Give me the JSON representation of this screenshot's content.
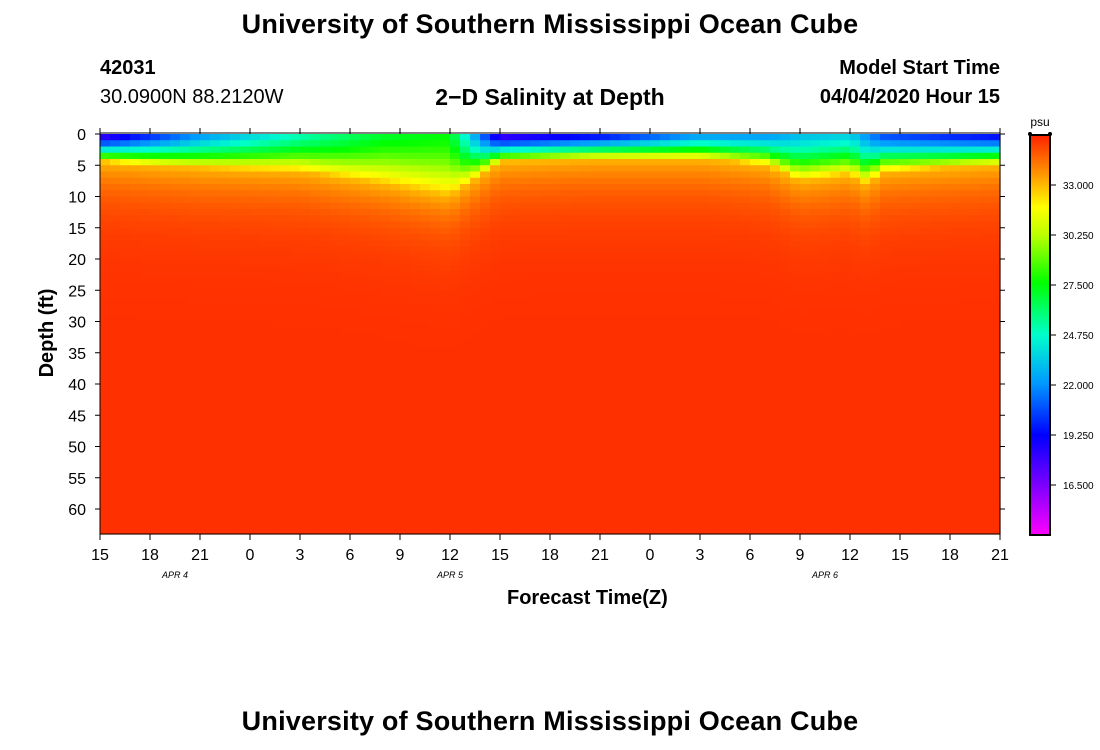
{
  "header": {
    "title": "University of Southern Mississippi Ocean Cube",
    "station_id": "42031",
    "station_location": "30.0900N 88.2120W",
    "chart_title": "2−D Salinity at Depth",
    "model_start_label": "Model Start Time",
    "model_start_value": "04/04/2020 Hour 15"
  },
  "footer": {
    "title": "University of Southern Mississippi Ocean Cube"
  },
  "chart_data": {
    "type": "heatmap",
    "title": "2−D Salinity at Depth",
    "xlabel": "Forecast Time(Z)",
    "ylabel": "Depth (ft)",
    "x_tick_labels": [
      "15",
      "18",
      "21",
      "0",
      "3",
      "6",
      "9",
      "12",
      "15",
      "18",
      "21",
      "0",
      "3",
      "6",
      "9",
      "12",
      "15",
      "18",
      "21"
    ],
    "x_range_hours": [
      0,
      54
    ],
    "date_labels": [
      {
        "label": "APR 4",
        "hour": 4.5
      },
      {
        "label": "APR 5",
        "hour": 21
      },
      {
        "label": "APR 6",
        "hour": 43.5
      }
    ],
    "y_ticks": [
      0,
      5,
      10,
      15,
      20,
      25,
      30,
      35,
      40,
      45,
      50,
      55,
      60
    ],
    "ylim": [
      0,
      64
    ],
    "colorbar": {
      "unit": "psu",
      "min": 13.75,
      "max": 35.75,
      "ticks": [
        "33.000",
        "30.250",
        "27.500",
        "24.750",
        "22.000",
        "19.250",
        "16.500"
      ],
      "tick_values": [
        33.0,
        30.25,
        27.5,
        24.75,
        22.0,
        19.25,
        16.5
      ]
    },
    "salinity_profile_keyframes": [
      {
        "hour": 0,
        "surface_psu": 17.5,
        "mixed_layer_ft": 4.5
      },
      {
        "hour": 6,
        "surface_psu": 22.0,
        "mixed_layer_ft": 5.5
      },
      {
        "hour": 12,
        "surface_psu": 25.0,
        "mixed_layer_ft": 6.0
      },
      {
        "hour": 17,
        "surface_psu": 27.0,
        "mixed_layer_ft": 8.0
      },
      {
        "hour": 21,
        "surface_psu": 27.5,
        "mixed_layer_ft": 10.0
      },
      {
        "hour": 24,
        "surface_psu": 17.5,
        "mixed_layer_ft": 4.5
      },
      {
        "hour": 30,
        "surface_psu": 19.0,
        "mixed_layer_ft": 4.0
      },
      {
        "hour": 36,
        "surface_psu": 22.0,
        "mixed_layer_ft": 4.0
      },
      {
        "hour": 40,
        "surface_psu": 22.0,
        "mixed_layer_ft": 5.0
      },
      {
        "hour": 42,
        "surface_psu": 23.0,
        "mixed_layer_ft": 7.5
      },
      {
        "hour": 45,
        "surface_psu": 23.5,
        "mixed_layer_ft": 6.5
      },
      {
        "hour": 46,
        "surface_psu": 22.0,
        "mixed_layer_ft": 8.0
      },
      {
        "hour": 47,
        "surface_psu": 20.5,
        "mixed_layer_ft": 6.0
      },
      {
        "hour": 54,
        "surface_psu": 19.0,
        "mixed_layer_ft": 5.0
      }
    ],
    "deep_psu": 35.5
  }
}
